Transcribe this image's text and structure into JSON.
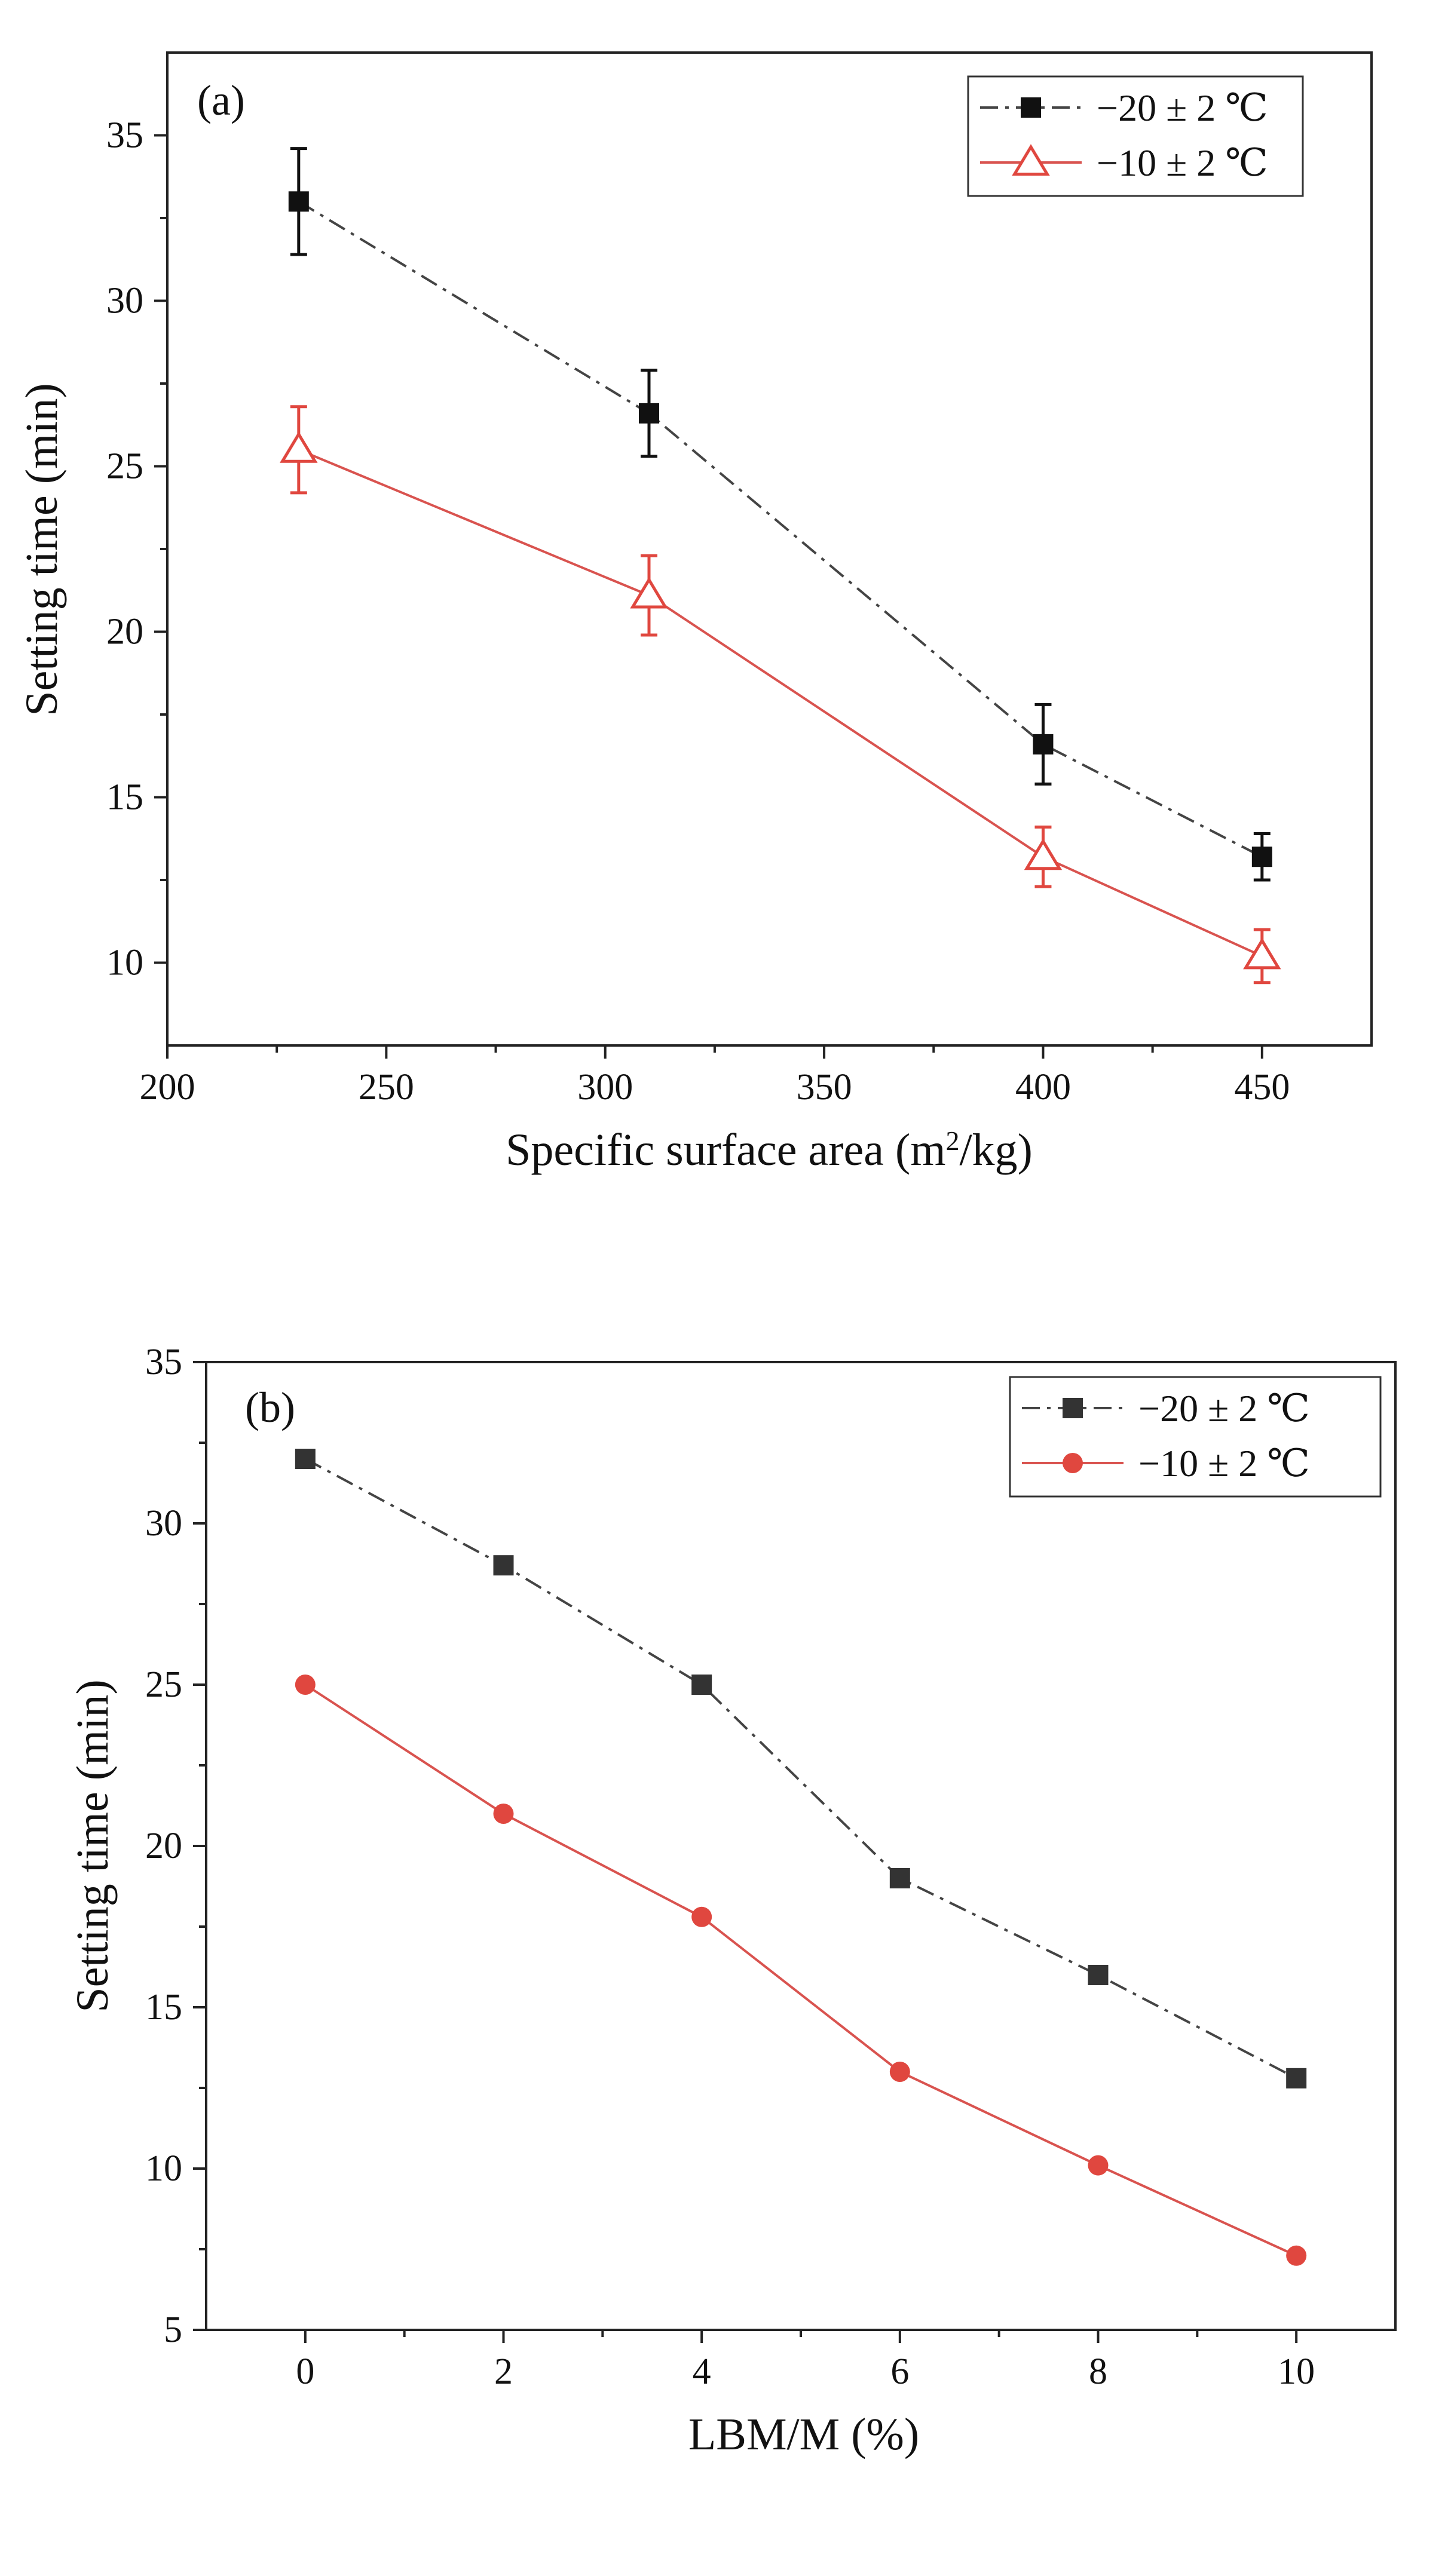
{
  "colors": {
    "black_series": "#111111",
    "grey_series": "#333333",
    "red_series": "#e0473f",
    "red_line": "#d9534f"
  },
  "chart_data": [
    {
      "panel": "(a)",
      "type": "line",
      "xlabel": "Specific surface area (m",
      "xlabel_sup": "2",
      "xlabel_tail": "/kg)",
      "ylabel": "Setting time (min)",
      "xlim": [
        200,
        475
      ],
      "ylim": [
        7.5,
        37.5
      ],
      "xticks": [
        200,
        250,
        300,
        350,
        400,
        450
      ],
      "yticks": [
        10,
        15,
        20,
        25,
        30,
        35
      ],
      "error_bars": true,
      "legend_position": "top-right",
      "series": [
        {
          "name": "−20 ± 2 ℃",
          "marker": "filled-square",
          "line": "dash-dot",
          "color": "#111111",
          "x": [
            230,
            310,
            400,
            450
          ],
          "y": [
            33.0,
            26.6,
            16.6,
            13.2
          ],
          "err": [
            1.6,
            1.3,
            1.2,
            0.7
          ]
        },
        {
          "name": "−10 ± 2 ℃",
          "marker": "open-triangle",
          "line": "solid",
          "color": "#e0473f",
          "x": [
            230,
            310,
            400,
            450
          ],
          "y": [
            25.5,
            21.1,
            13.2,
            10.2
          ],
          "err": [
            1.3,
            1.2,
            0.9,
            0.8
          ]
        }
      ]
    },
    {
      "panel": "(b)",
      "type": "line",
      "xlabel": "LBM/M (%)",
      "ylabel": "Setting time (min)",
      "xlim": [
        -1,
        11
      ],
      "ylim": [
        5,
        35
      ],
      "xticks": [
        0,
        2,
        4,
        6,
        8,
        10
      ],
      "yticks": [
        5,
        10,
        15,
        20,
        25,
        30,
        35
      ],
      "error_bars": false,
      "legend_position": "top-right",
      "series": [
        {
          "name": "−20 ± 2 ℃",
          "marker": "filled-square",
          "line": "dash-dot",
          "color": "#333333",
          "x": [
            0,
            2,
            4,
            6,
            8,
            10
          ],
          "y": [
            32.0,
            28.7,
            25.0,
            19.0,
            16.0,
            12.8
          ]
        },
        {
          "name": "−10 ± 2 ℃",
          "marker": "filled-circle",
          "line": "solid",
          "color": "#e0473f",
          "x": [
            0,
            2,
            4,
            6,
            8,
            10
          ],
          "y": [
            25.0,
            21.0,
            17.8,
            13.0,
            10.1,
            7.3
          ]
        }
      ]
    }
  ]
}
